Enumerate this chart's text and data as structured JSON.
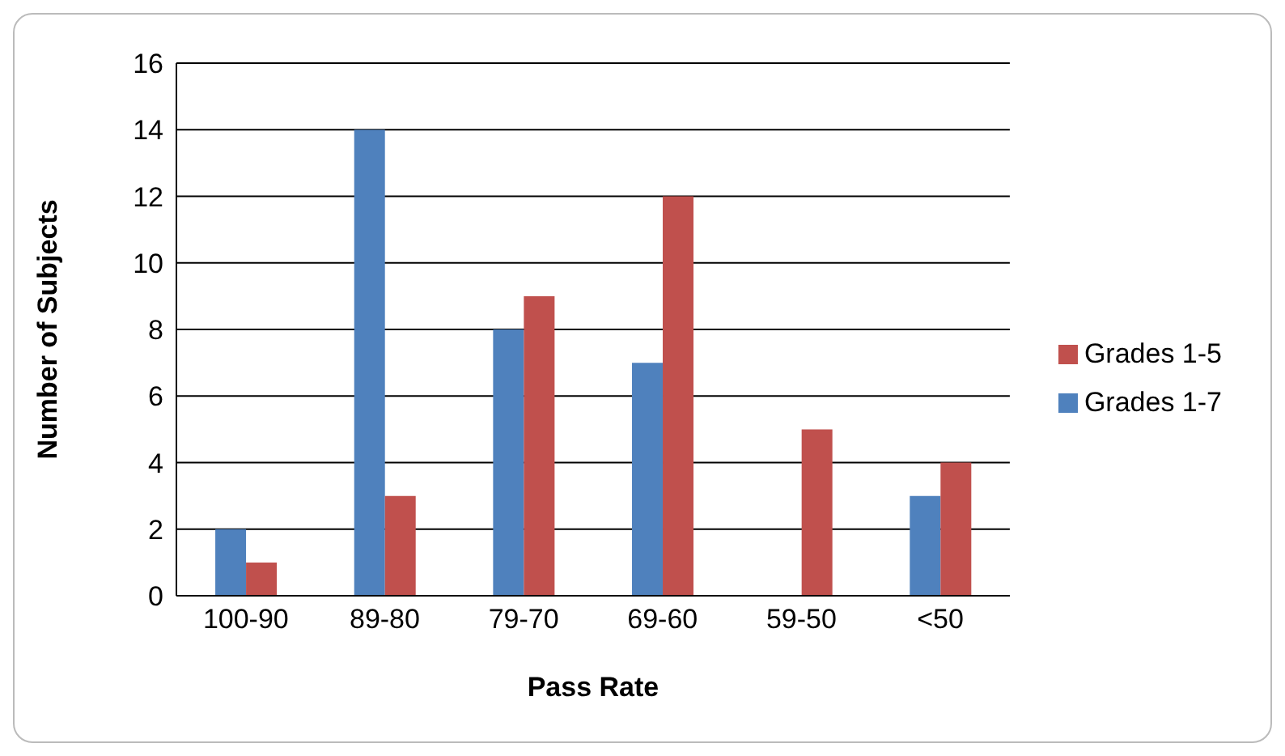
{
  "chart_data": {
    "type": "bar",
    "xlabel": "Pass Rate",
    "ylabel": "Number of Subjects",
    "categories": [
      "100-90",
      "89-80",
      "79-70",
      "69-60",
      "59-50",
      "<50"
    ],
    "series": [
      {
        "name": "Grades 1-7",
        "color": "#4f81bd",
        "values": [
          2,
          14,
          8,
          7,
          0,
          3
        ]
      },
      {
        "name": "Grades 1-5",
        "color": "#c0504d",
        "values": [
          1,
          3,
          9,
          12,
          5,
          4
        ]
      }
    ],
    "ylim": [
      0,
      16
    ],
    "yticks": [
      0,
      2,
      4,
      6,
      8,
      10,
      12,
      14,
      16
    ],
    "grid": "y",
    "legend": "right"
  }
}
